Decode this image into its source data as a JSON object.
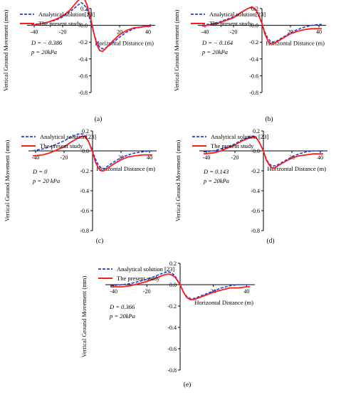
{
  "chart_data": [
    {
      "type": "line",
      "panel_label": "(a)",
      "ylabel": "Vertical Ground Movement (mm)",
      "xlabel": "Horizontal Distance (m)",
      "xlim": [
        -45,
        45
      ],
      "ylim": [
        -0.8,
        0.2
      ],
      "x_ticks": [
        "-40",
        "-20",
        "0",
        "20",
        "40"
      ],
      "y_ticks": [
        "0.2",
        "0.0",
        "-0.2",
        "-0.4",
        "-0.6",
        "-0.8"
      ],
      "legend_position": "top-left",
      "legend": [
        "Analytical solution[23]",
        "The present study"
      ],
      "annotations": [
        "D = − 0.386",
        "p = 20kPa"
      ],
      "series": [
        {
          "name": "Analytical solution[23]",
          "color": "#1f3fd6",
          "dash": true,
          "x": [
            -42,
            -35,
            -30,
            -25,
            -20,
            -15,
            -10,
            -7,
            -5,
            -3,
            0,
            2,
            4,
            6,
            8,
            10,
            15,
            20,
            25,
            30,
            35,
            40,
            42
          ],
          "y": [
            0.01,
            0.02,
            0.04,
            0.06,
            0.1,
            0.16,
            0.23,
            0.27,
            0.25,
            0.19,
            0.02,
            -0.1,
            -0.2,
            -0.26,
            -0.28,
            -0.27,
            -0.21,
            -0.14,
            -0.08,
            -0.04,
            -0.02,
            0.0,
            0.01
          ]
        },
        {
          "name": "The present study",
          "color": "#ff1a1a",
          "dash": false,
          "x": [
            -42,
            -35,
            -30,
            -25,
            -20,
            -15,
            -10,
            -7,
            -5,
            -3,
            0,
            2,
            4,
            6,
            8,
            10,
            15,
            20,
            25,
            30,
            35,
            40,
            42
          ],
          "y": [
            0.0,
            0.02,
            0.04,
            0.07,
            0.11,
            0.18,
            0.28,
            0.33,
            0.32,
            0.25,
            0.06,
            -0.1,
            -0.23,
            -0.3,
            -0.31,
            -0.28,
            -0.19,
            -0.11,
            -0.06,
            -0.03,
            -0.02,
            -0.01,
            -0.01
          ]
        }
      ]
    },
    {
      "type": "line",
      "panel_label": "(b)",
      "ylabel": "Vertical Ground Movement (mm)",
      "xlabel": "Horizontal Distance (m)",
      "xlim": [
        -45,
        45
      ],
      "ylim": [
        -0.8,
        0.2
      ],
      "x_ticks": [
        "-40",
        "-20",
        "0",
        "20",
        "40"
      ],
      "y_ticks": [
        "0.2",
        "0.0",
        "-0.2",
        "-0.4",
        "-0.6",
        "-0.8"
      ],
      "legend_position": "top-left",
      "legend": [
        "Analytical solution[23]",
        "The present study"
      ],
      "annotations": [
        "D = − 0.164",
        "p = 20kPa"
      ],
      "series": [
        {
          "name": "Analytical solution[23]",
          "color": "#1f3fd6",
          "dash": true,
          "x": [
            -42,
            -35,
            -30,
            -25,
            -20,
            -15,
            -10,
            -7,
            -5,
            -3,
            0,
            2,
            4,
            6,
            8,
            10,
            15,
            20,
            25,
            30,
            35,
            40,
            42
          ],
          "y": [
            0.0,
            0.02,
            0.04,
            0.07,
            0.1,
            0.15,
            0.2,
            0.21,
            0.19,
            0.14,
            0.02,
            -0.08,
            -0.15,
            -0.19,
            -0.2,
            -0.19,
            -0.14,
            -0.09,
            -0.05,
            -0.02,
            0.0,
            0.01,
            0.01
          ]
        },
        {
          "name": "The present study",
          "color": "#ff1a1a",
          "dash": false,
          "x": [
            -42,
            -35,
            -30,
            -25,
            -20,
            -15,
            -10,
            -7,
            -5,
            -3,
            0,
            2,
            4,
            6,
            8,
            10,
            15,
            20,
            25,
            30,
            35,
            40,
            42
          ],
          "y": [
            -0.01,
            0.01,
            0.03,
            0.06,
            0.09,
            0.15,
            0.2,
            0.22,
            0.2,
            0.15,
            0.02,
            -0.1,
            -0.18,
            -0.22,
            -0.22,
            -0.2,
            -0.15,
            -0.1,
            -0.07,
            -0.05,
            -0.04,
            -0.04,
            -0.04
          ]
        }
      ]
    },
    {
      "type": "line",
      "panel_label": "(c)",
      "ylabel": "Vertical Ground Movement (mm)",
      "xlabel": "Horizontal Distance (m)",
      "xlim": [
        -45,
        45
      ],
      "ylim": [
        -0.8,
        0.2
      ],
      "x_ticks": [
        "-40",
        "-20",
        "0",
        "20",
        "40"
      ],
      "y_ticks": [
        "0.2",
        "0.0",
        "-0.2",
        "-0.4",
        "-0.6",
        "-0.8"
      ],
      "legend_position": "top-left",
      "legend": [
        "Analytical solution[23]",
        "The present study"
      ],
      "annotations": [
        "D = 0",
        "p = 20 kPa"
      ],
      "series": [
        {
          "name": "Analytical solution[23]",
          "color": "#1f3fd6",
          "dash": true,
          "x": [
            -42,
            -35,
            -30,
            -25,
            -20,
            -15,
            -10,
            -7,
            -5,
            -3,
            0,
            2,
            4,
            6,
            8,
            10,
            15,
            20,
            25,
            30,
            35,
            40,
            42
          ],
          "y": [
            0.0,
            0.02,
            0.04,
            0.07,
            0.1,
            0.14,
            0.17,
            0.17,
            0.15,
            0.1,
            0.0,
            -0.08,
            -0.14,
            -0.17,
            -0.18,
            -0.16,
            -0.11,
            -0.07,
            -0.04,
            -0.02,
            -0.01,
            0.0,
            0.0
          ]
        },
        {
          "name": "The present study",
          "color": "#ff1a1a",
          "dash": false,
          "x": [
            -42,
            -35,
            -30,
            -25,
            -20,
            -15,
            -10,
            -7,
            -5,
            -3,
            0,
            2,
            4,
            6,
            8,
            10,
            15,
            20,
            25,
            30,
            35,
            40,
            42
          ],
          "y": [
            -0.05,
            -0.04,
            -0.02,
            0.01,
            0.04,
            0.09,
            0.13,
            0.15,
            0.14,
            0.1,
            -0.01,
            -0.11,
            -0.17,
            -0.2,
            -0.2,
            -0.18,
            -0.13,
            -0.09,
            -0.06,
            -0.05,
            -0.04,
            -0.04,
            -0.04
          ]
        }
      ]
    },
    {
      "type": "line",
      "panel_label": "(d)",
      "ylabel": "Vertical Ground Movement (mm)",
      "xlabel": "Horizontal Distance (m)",
      "xlim": [
        -45,
        45
      ],
      "ylim": [
        -0.8,
        0.2
      ],
      "x_ticks": [
        "-40",
        "-20",
        "0",
        "20",
        "40"
      ],
      "y_ticks": [
        "0.2",
        "0.0",
        "-0.2",
        "-0.4",
        "-0.6",
        "-0.8"
      ],
      "legend_position": "top-left",
      "legend": [
        "Analytical solution [23]",
        "The present study"
      ],
      "annotations": [
        "D = 0.143",
        "p = 20kPa"
      ],
      "series": [
        {
          "name": "Analytical solution [23]",
          "color": "#1f3fd6",
          "dash": true,
          "x": [
            -42,
            -35,
            -30,
            -25,
            -20,
            -15,
            -10,
            -7,
            -5,
            -3,
            0,
            2,
            4,
            6,
            8,
            10,
            15,
            20,
            25,
            30,
            35,
            40,
            42
          ],
          "y": [
            -0.01,
            0.0,
            0.02,
            0.04,
            0.07,
            0.11,
            0.14,
            0.15,
            0.13,
            0.09,
            0.0,
            -0.08,
            -0.13,
            -0.15,
            -0.15,
            -0.14,
            -0.1,
            -0.06,
            -0.03,
            -0.01,
            0.0,
            0.0,
            0.0
          ]
        },
        {
          "name": "The present study",
          "color": "#ff1a1a",
          "dash": false,
          "x": [
            -42,
            -35,
            -30,
            -25,
            -20,
            -15,
            -10,
            -7,
            -5,
            -3,
            0,
            2,
            4,
            6,
            8,
            10,
            15,
            20,
            25,
            30,
            35,
            40,
            42
          ],
          "y": [
            -0.03,
            -0.02,
            0.0,
            0.03,
            0.06,
            0.1,
            0.13,
            0.14,
            0.13,
            0.09,
            0.0,
            -0.09,
            -0.14,
            -0.17,
            -0.17,
            -0.15,
            -0.11,
            -0.07,
            -0.05,
            -0.04,
            -0.03,
            -0.03,
            -0.03
          ]
        }
      ]
    },
    {
      "type": "line",
      "panel_label": "(e)",
      "ylabel": "Vertical Ground Movement (mm)",
      "xlabel": "Horizontal Distance (m)",
      "xlim": [
        -45,
        45
      ],
      "ylim": [
        -0.8,
        0.2
      ],
      "x_ticks": [
        "-40",
        "-20",
        "0",
        "20",
        "40"
      ],
      "y_ticks": [
        "0.2",
        "0.0",
        "-0.2",
        "-0.4",
        "-0.6",
        "-0.8"
      ],
      "legend_position": "top-left",
      "legend": [
        "Analytical solution [23]",
        "The present study"
      ],
      "annotations": [
        "D = 0.366",
        "p = 20kPa"
      ],
      "series": [
        {
          "name": "Analytical solution [23]",
          "color": "#1f3fd6",
          "dash": true,
          "x": [
            -42,
            -35,
            -30,
            -25,
            -20,
            -15,
            -10,
            -7,
            -5,
            -3,
            0,
            2,
            4,
            6,
            8,
            10,
            15,
            20,
            25,
            30,
            35,
            40,
            42
          ],
          "y": [
            -0.01,
            0.0,
            0.01,
            0.03,
            0.05,
            0.08,
            0.11,
            0.12,
            0.11,
            0.08,
            0.0,
            -0.07,
            -0.11,
            -0.13,
            -0.13,
            -0.12,
            -0.09,
            -0.06,
            -0.03,
            -0.01,
            0.0,
            0.0,
            0.0
          ]
        },
        {
          "name": "The present study",
          "color": "#ff1a1a",
          "dash": false,
          "x": [
            -42,
            -35,
            -30,
            -25,
            -20,
            -15,
            -10,
            -7,
            -5,
            -3,
            0,
            2,
            4,
            6,
            8,
            10,
            15,
            20,
            25,
            30,
            35,
            40,
            42
          ],
          "y": [
            -0.02,
            -0.02,
            -0.01,
            0.01,
            0.03,
            0.06,
            0.09,
            0.1,
            0.09,
            0.07,
            0.0,
            -0.07,
            -0.12,
            -0.14,
            -0.14,
            -0.13,
            -0.1,
            -0.07,
            -0.05,
            -0.03,
            -0.03,
            -0.02,
            -0.02
          ]
        }
      ]
    }
  ]
}
